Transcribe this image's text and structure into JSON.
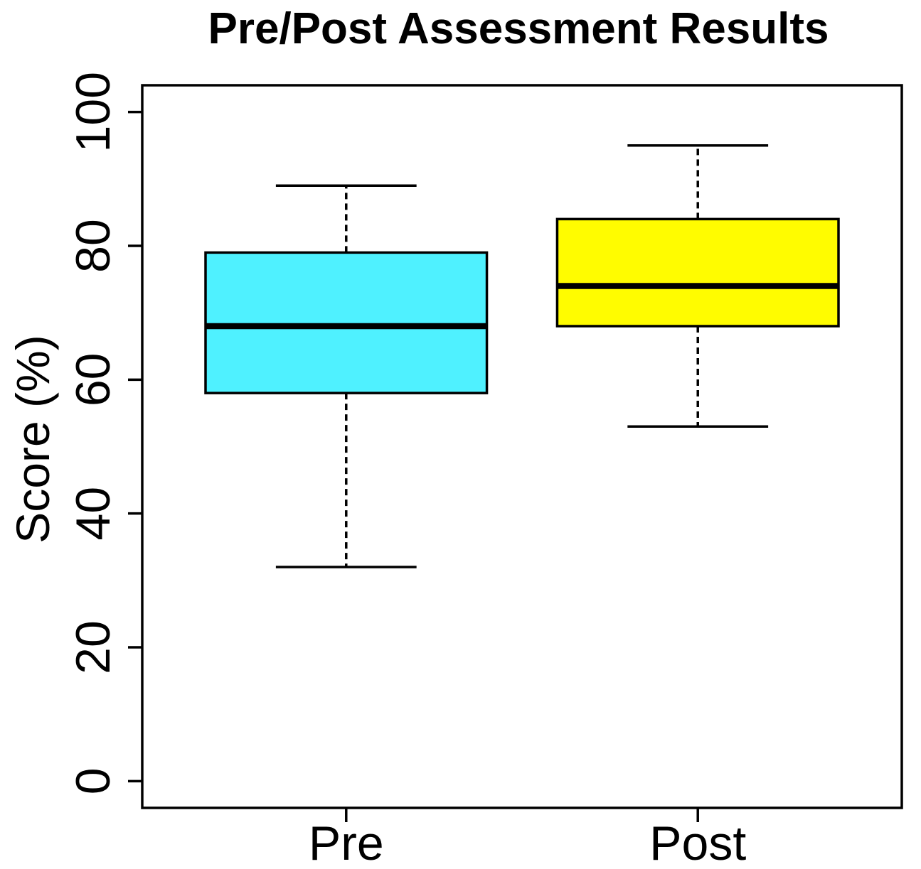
{
  "chart_data": {
    "type": "boxplot",
    "title": "Pre/Post Assessment Results",
    "ylabel": "Score (%)",
    "xlabel": "",
    "categories": [
      "Pre",
      "Post"
    ],
    "yticks": [
      0,
      20,
      40,
      60,
      80,
      100
    ],
    "ytick_labels": [
      "0",
      "20",
      "40",
      "60",
      "80",
      "100"
    ],
    "ylim": [
      0,
      100
    ],
    "grid": false,
    "legend": "none",
    "series": [
      {
        "name": "Pre",
        "stats": {
          "whisker_low": 32,
          "q1": 58,
          "median": 68,
          "q3": 79,
          "whisker_high": 89
        },
        "outliers": [],
        "fill": "#4FF1FF"
      },
      {
        "name": "Post",
        "stats": {
          "whisker_low": 53,
          "q1": 68,
          "median": 74,
          "q3": 84,
          "whisker_high": 95
        },
        "outliers": [],
        "fill": "#FFFC00"
      }
    ],
    "colors": {
      "stroke": "#000000",
      "background": "#FFFFFF",
      "pre_fill": "#4FF1FF",
      "post_fill": "#FFFC00"
    }
  }
}
